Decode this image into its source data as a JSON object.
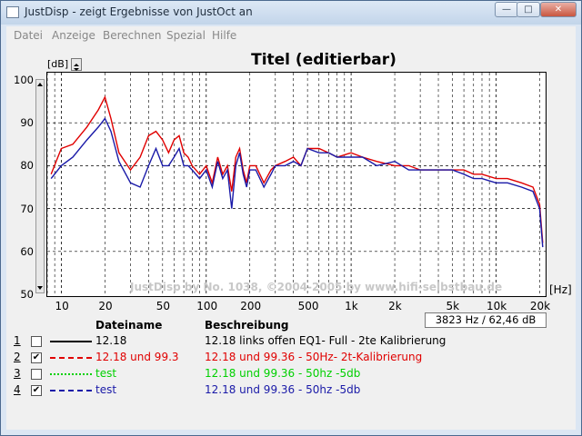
{
  "window": {
    "title": "JustDisp - zeigt Ergebnisse von JustOct an",
    "min_glyph": "—",
    "max_glyph": "□",
    "close_glyph": "✕"
  },
  "menu": {
    "items": [
      {
        "label": "Datei"
      },
      {
        "label": "Anzeige"
      },
      {
        "label": "Berechnen"
      },
      {
        "label": "Spezial"
      },
      {
        "label": "Hilfe"
      }
    ]
  },
  "chart": {
    "title": "Titel (editierbar)",
    "y_unit": "[dB]",
    "x_unit": "[Hz]",
    "watermark": "JustDisp by No. 1038, ©2004-2005 by www.hifi-selbstbau.de",
    "readout": "3823 Hz / 62,46 dB"
  },
  "legend": {
    "header_name": "Dateiname",
    "header_desc": "Beschreibung",
    "rows": [
      {
        "num": "1",
        "checked": false,
        "check_glyph": "",
        "name": "12.18",
        "desc": "12.18 links offen EQ1- Full - 2te Kalibrierung",
        "color": "#000000",
        "style": "solid"
      },
      {
        "num": "2",
        "checked": true,
        "check_glyph": "✔",
        "name": "12.18 und 99.3",
        "desc": "12.18 und 99.36 - 50Hz- 2t-Kalibrierung",
        "color": "#e00000",
        "style": "dashed"
      },
      {
        "num": "3",
        "checked": false,
        "check_glyph": "",
        "name": "test",
        "desc": "12.18 und 99.36 - 50hz -5db",
        "color": "#00d000",
        "style": "dotted"
      },
      {
        "num": "4",
        "checked": true,
        "check_glyph": "✔",
        "name": "test",
        "desc": "12.18 und 99.36 - 50hz -5db",
        "color": "#1a1aa8",
        "style": "dashdot"
      }
    ]
  },
  "chart_data": {
    "type": "line",
    "title": "Titel (editierbar)",
    "xlabel": "[Hz]",
    "ylabel": "[dB]",
    "x_scale": "log",
    "xlim": [
      8,
      22000
    ],
    "ylim": [
      50,
      100
    ],
    "x_ticks": [
      10,
      20,
      50,
      100,
      200,
      500,
      1000,
      2000,
      5000,
      10000,
      20000
    ],
    "x_tick_labels": [
      "10",
      "20",
      "50",
      "100",
      "200",
      "500",
      "1k",
      "2k",
      "5k",
      "10k",
      "20k"
    ],
    "y_ticks": [
      50,
      60,
      70,
      80,
      90,
      100
    ],
    "y_tick_labels": [
      "50",
      "60",
      "70",
      "80",
      "90",
      "100"
    ],
    "grid": true,
    "series": [
      {
        "name": "12.18 und 99.3",
        "color": "#e00000",
        "x": [
          8.5,
          10,
          12,
          15,
          18,
          20,
          22,
          25,
          30,
          35,
          40,
          45,
          50,
          55,
          60,
          65,
          70,
          75,
          80,
          90,
          100,
          110,
          120,
          130,
          140,
          150,
          160,
          170,
          180,
          190,
          200,
          220,
          250,
          280,
          300,
          350,
          400,
          450,
          500,
          600,
          700,
          800,
          1000,
          1200,
          1500,
          2000,
          2500,
          3000,
          4000,
          5000,
          6000,
          7000,
          8000,
          10000,
          12000,
          15000,
          18000,
          20000,
          21000
        ],
        "y": [
          78,
          84,
          85,
          89,
          93,
          96,
          91,
          83,
          79,
          82,
          87,
          88,
          86,
          83,
          86,
          87,
          83,
          82,
          80,
          78,
          80,
          76,
          82,
          78,
          80,
          74,
          82,
          84,
          79,
          76,
          80,
          80,
          76,
          79,
          80,
          81,
          82,
          80,
          84,
          84,
          83,
          82,
          83,
          82,
          81,
          80,
          80,
          79,
          79,
          79,
          79,
          78,
          78,
          77,
          77,
          76,
          75,
          71,
          62
        ]
      },
      {
        "name": "test",
        "color": "#1a1aa8",
        "x": [
          8.5,
          10,
          12,
          15,
          18,
          20,
          22,
          25,
          30,
          35,
          40,
          45,
          50,
          55,
          60,
          65,
          70,
          75,
          80,
          90,
          100,
          110,
          120,
          130,
          140,
          150,
          160,
          170,
          180,
          190,
          200,
          220,
          250,
          280,
          300,
          350,
          400,
          450,
          500,
          600,
          700,
          800,
          1000,
          1200,
          1500,
          2000,
          2500,
          3000,
          4000,
          5000,
          6000,
          7000,
          8000,
          10000,
          12000,
          15000,
          18000,
          20000,
          21000
        ],
        "y": [
          77,
          80,
          82,
          86,
          89,
          91,
          88,
          81,
          76,
          75,
          80,
          84,
          80,
          80,
          82,
          84,
          80,
          80,
          79,
          77,
          79,
          75,
          81,
          77,
          79,
          70,
          80,
          83,
          78,
          75,
          79,
          79,
          75,
          78,
          80,
          80,
          81,
          80,
          84,
          83,
          83,
          82,
          82,
          82,
          80,
          81,
          79,
          79,
          79,
          79,
          78,
          77,
          77,
          76,
          76,
          75,
          74,
          70,
          61
        ]
      }
    ]
  }
}
